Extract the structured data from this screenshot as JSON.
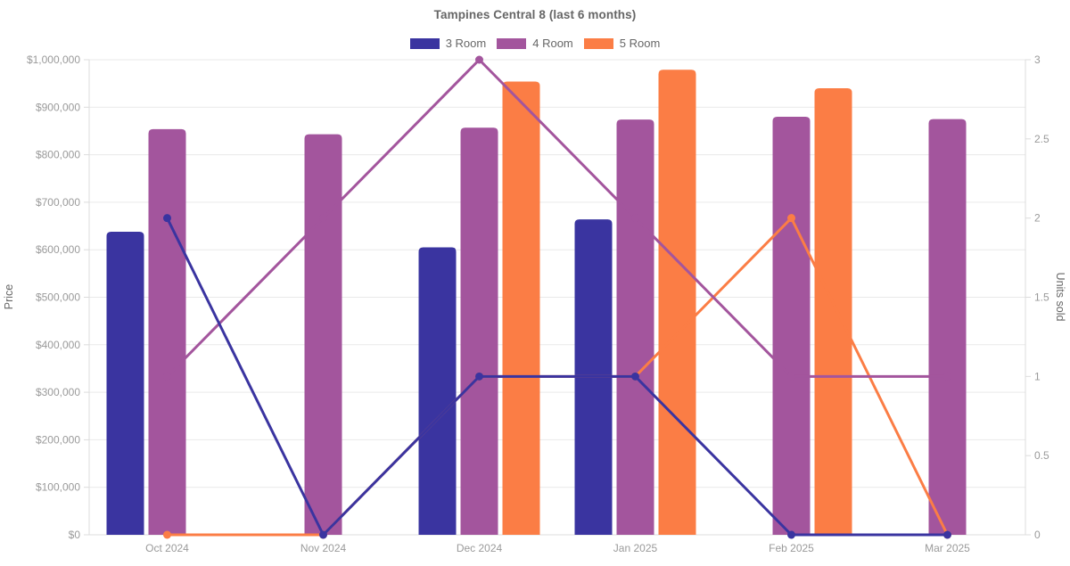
{
  "page": {
    "background": "#ffffff"
  },
  "chart_data": {
    "type": "combo-bar-line",
    "title": "Tampines Central 8 (last 6 months)",
    "categories": [
      "Oct 2024",
      "Nov 2024",
      "Dec 2024",
      "Jan 2025",
      "Feb 2025",
      "Mar 2025"
    ],
    "legend": {
      "position": "top",
      "items": [
        "3 Room",
        "4 Room",
        "5 Room"
      ]
    },
    "colors": {
      "accent_blue": "#3a34a0",
      "accent_purple": "#a3559d",
      "accent_orange": "#fb7d45",
      "gridline": "#e9e9e9",
      "axis_border": "#dcdcdc",
      "tick_text": "#9a9a9a",
      "label_text": "#666666"
    },
    "left_axis": {
      "label": "Price",
      "min": 0,
      "max": 1000000,
      "tick_step": 100000,
      "tick_labels": [
        "$0",
        "$100,000",
        "$200,000",
        "$300,000",
        "$400,000",
        "$500,000",
        "$600,000",
        "$700,000",
        "$800,000",
        "$900,000",
        "$1,000,000"
      ]
    },
    "right_axis": {
      "label": "Units sold",
      "min": 0,
      "max": 3,
      "tick_step": 0.5,
      "tick_labels": [
        "0",
        "0.5",
        "1",
        "1.5",
        "2",
        "2.5",
        "3"
      ]
    },
    "bar_series": [
      {
        "name": "3 Room",
        "axis": "left",
        "color": "#3a34a0",
        "values": [
          638000,
          null,
          605000,
          664000,
          null,
          null
        ]
      },
      {
        "name": "4 Room",
        "axis": "left",
        "color": "#a3559d",
        "values": [
          854000,
          843000,
          857000,
          874000,
          880000,
          875000
        ]
      },
      {
        "name": "5 Room",
        "axis": "left",
        "color": "#fb7d45",
        "values": [
          null,
          null,
          954000,
          979000,
          940000,
          null
        ]
      }
    ],
    "line_series": [
      {
        "name": "3 Room",
        "axis": "right",
        "color": "#3a34a0",
        "values": [
          2,
          0,
          1,
          1,
          0,
          0
        ]
      },
      {
        "name": "4 Room",
        "axis": "right",
        "color": "#a3559d",
        "values": [
          1,
          2,
          3,
          2,
          1,
          1
        ]
      },
      {
        "name": "5 Room",
        "axis": "right",
        "color": "#fb7d45",
        "values": [
          0,
          0,
          1,
          1,
          2,
          0
        ]
      }
    ],
    "grid": "horizontal"
  }
}
